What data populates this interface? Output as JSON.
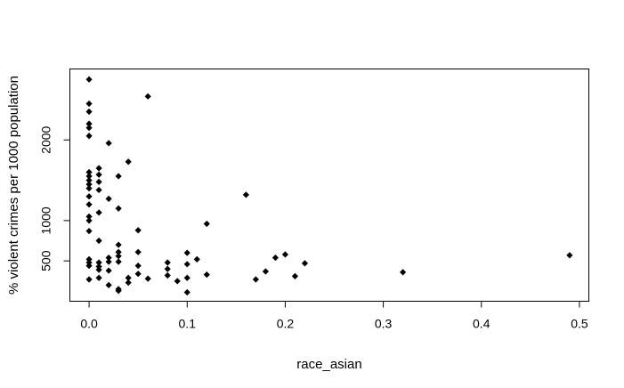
{
  "chart_data": {
    "type": "scatter",
    "title": "",
    "xlabel": "race_asian",
    "ylabel": "% violent crimes per 1000 population",
    "xlim": [
      -0.0196,
      0.5096
    ],
    "ylim": [
      0,
      2880
    ],
    "x_ticks": [
      0.0,
      0.1,
      0.2,
      0.3,
      0.4,
      0.5
    ],
    "x_tick_labels": [
      "0.0",
      "0.1",
      "0.2",
      "0.3",
      "0.4",
      "0.5"
    ],
    "y_ticks": [
      500,
      1000,
      2000
    ],
    "y_tick_labels": [
      "500",
      "1000",
      "2000"
    ],
    "grid": false,
    "legend": "none",
    "marker": "filled-diamond",
    "marker_color": "#000000",
    "points": [
      {
        "x": 0.0,
        "y": 2750
      },
      {
        "x": 0.0,
        "y": 2450
      },
      {
        "x": 0.0,
        "y": 2350
      },
      {
        "x": 0.0,
        "y": 2200
      },
      {
        "x": 0.0,
        "y": 2150
      },
      {
        "x": 0.0,
        "y": 2050
      },
      {
        "x": 0.0,
        "y": 1600
      },
      {
        "x": 0.0,
        "y": 1550
      },
      {
        "x": 0.0,
        "y": 1500
      },
      {
        "x": 0.0,
        "y": 1450
      },
      {
        "x": 0.0,
        "y": 1400
      },
      {
        "x": 0.0,
        "y": 1300
      },
      {
        "x": 0.0,
        "y": 1200
      },
      {
        "x": 0.0,
        "y": 1050
      },
      {
        "x": 0.0,
        "y": 1000
      },
      {
        "x": 0.0,
        "y": 870
      },
      {
        "x": 0.0,
        "y": 520
      },
      {
        "x": 0.0,
        "y": 480
      },
      {
        "x": 0.0,
        "y": 440
      },
      {
        "x": 0.0,
        "y": 270
      },
      {
        "x": 0.01,
        "y": 1650
      },
      {
        "x": 0.01,
        "y": 1570
      },
      {
        "x": 0.01,
        "y": 1480
      },
      {
        "x": 0.01,
        "y": 1380
      },
      {
        "x": 0.01,
        "y": 1100
      },
      {
        "x": 0.01,
        "y": 750
      },
      {
        "x": 0.01,
        "y": 480
      },
      {
        "x": 0.01,
        "y": 430
      },
      {
        "x": 0.01,
        "y": 390
      },
      {
        "x": 0.01,
        "y": 290
      },
      {
        "x": 0.02,
        "y": 1960
      },
      {
        "x": 0.02,
        "y": 1270
      },
      {
        "x": 0.02,
        "y": 540
      },
      {
        "x": 0.02,
        "y": 490
      },
      {
        "x": 0.02,
        "y": 380
      },
      {
        "x": 0.02,
        "y": 200
      },
      {
        "x": 0.03,
        "y": 1550
      },
      {
        "x": 0.03,
        "y": 1150
      },
      {
        "x": 0.03,
        "y": 700
      },
      {
        "x": 0.03,
        "y": 610
      },
      {
        "x": 0.03,
        "y": 560
      },
      {
        "x": 0.03,
        "y": 490
      },
      {
        "x": 0.03,
        "y": 150
      },
      {
        "x": 0.03,
        "y": 130
      },
      {
        "x": 0.04,
        "y": 1730
      },
      {
        "x": 0.04,
        "y": 290
      },
      {
        "x": 0.04,
        "y": 230
      },
      {
        "x": 0.05,
        "y": 880
      },
      {
        "x": 0.05,
        "y": 610
      },
      {
        "x": 0.05,
        "y": 440
      },
      {
        "x": 0.05,
        "y": 340
      },
      {
        "x": 0.06,
        "y": 2540
      },
      {
        "x": 0.06,
        "y": 280
      },
      {
        "x": 0.08,
        "y": 480
      },
      {
        "x": 0.08,
        "y": 400
      },
      {
        "x": 0.08,
        "y": 320
      },
      {
        "x": 0.09,
        "y": 250
      },
      {
        "x": 0.1,
        "y": 600
      },
      {
        "x": 0.1,
        "y": 460
      },
      {
        "x": 0.1,
        "y": 290
      },
      {
        "x": 0.1,
        "y": 110
      },
      {
        "x": 0.11,
        "y": 520
      },
      {
        "x": 0.12,
        "y": 960
      },
      {
        "x": 0.12,
        "y": 330
      },
      {
        "x": 0.16,
        "y": 1320
      },
      {
        "x": 0.17,
        "y": 270
      },
      {
        "x": 0.18,
        "y": 370
      },
      {
        "x": 0.19,
        "y": 540
      },
      {
        "x": 0.2,
        "y": 580
      },
      {
        "x": 0.21,
        "y": 310
      },
      {
        "x": 0.22,
        "y": 470
      },
      {
        "x": 0.32,
        "y": 360
      },
      {
        "x": 0.49,
        "y": 570
      }
    ]
  }
}
